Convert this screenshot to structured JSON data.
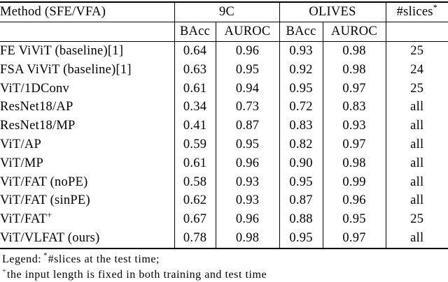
{
  "table": {
    "method_header": "Method (SFE/VFA)",
    "group_9c": "9C",
    "group_olives": "OLIVES",
    "slices_label": "#slices",
    "slices_sup": "*",
    "metric_headers": [
      "BAcc",
      "AUROC",
      "BAcc",
      "AUROC"
    ],
    "rows": [
      {
        "method": "FE ViViT (baseline)[1]",
        "c9_bacc": "0.64",
        "c9_auroc": "0.96",
        "ol_bacc": "0.93",
        "ol_auroc": "0.98",
        "slices": "25"
      },
      {
        "method": "FSA ViViT (baseline)[1]",
        "c9_bacc": "0.63",
        "c9_auroc": "0.95",
        "ol_bacc": "0.92",
        "ol_auroc": "0.98",
        "slices": "24"
      },
      {
        "method": "ViT/1DConv",
        "c9_bacc": "0.61",
        "c9_auroc": "0.94",
        "ol_bacc": "0.95",
        "ol_auroc": "0.97",
        "slices": "25"
      },
      {
        "method": "ResNet18/AP",
        "c9_bacc": "0.34",
        "c9_auroc": "0.73",
        "ol_bacc": "0.72",
        "ol_auroc": "0.83",
        "slices": "all"
      },
      {
        "method": "ResNet18/MP",
        "c9_bacc": "0.41",
        "c9_auroc": "0.87",
        "ol_bacc": "0.83",
        "ol_auroc": "0.93",
        "slices": "all"
      },
      {
        "method": "ViT/AP",
        "c9_bacc": "0.59",
        "c9_auroc": "0.95",
        "ol_bacc": "0.82",
        "ol_auroc": "0.97",
        "slices": "all"
      },
      {
        "method": "ViT/MP",
        "c9_bacc": "0.61",
        "c9_auroc": "0.96",
        "ol_bacc": "0.90",
        "ol_auroc": "0.98",
        "slices": "all"
      },
      {
        "method": "ViT/FAT (noPE)",
        "c9_bacc": "0.58",
        "c9_auroc": "0.93",
        "ol_bacc": "0.95",
        "ol_auroc": "0.99",
        "slices": "all",
        "bold": [
          "ol_bacc",
          "ol_auroc"
        ]
      },
      {
        "method": "ViT/FAT (sinPE)",
        "c9_bacc": "0.62",
        "c9_auroc": "0.93",
        "ol_bacc": "0.87",
        "ol_auroc": "0.96",
        "slices": "all"
      },
      {
        "method": "ViT/FAT",
        "method_sup": "+",
        "c9_bacc": "0.67",
        "c9_auroc": "0.96",
        "ol_bacc": "0.88",
        "ol_auroc": "0.95",
        "slices": "25"
      },
      {
        "method": "ViT/VLFAT (ours)",
        "c9_bacc": "0.78",
        "c9_auroc": "0.98",
        "ol_bacc": "0.95",
        "ol_auroc": "0.97",
        "slices": "all",
        "bold": [
          "c9_bacc",
          "c9_auroc"
        ]
      }
    ]
  },
  "legend": {
    "line1_prefix": "Legend:",
    "line1_sup": "*",
    "line1_text": "#slices at the test time;",
    "line2_sup": "+",
    "line2_text": "the input length is fixed in both training and test time"
  }
}
